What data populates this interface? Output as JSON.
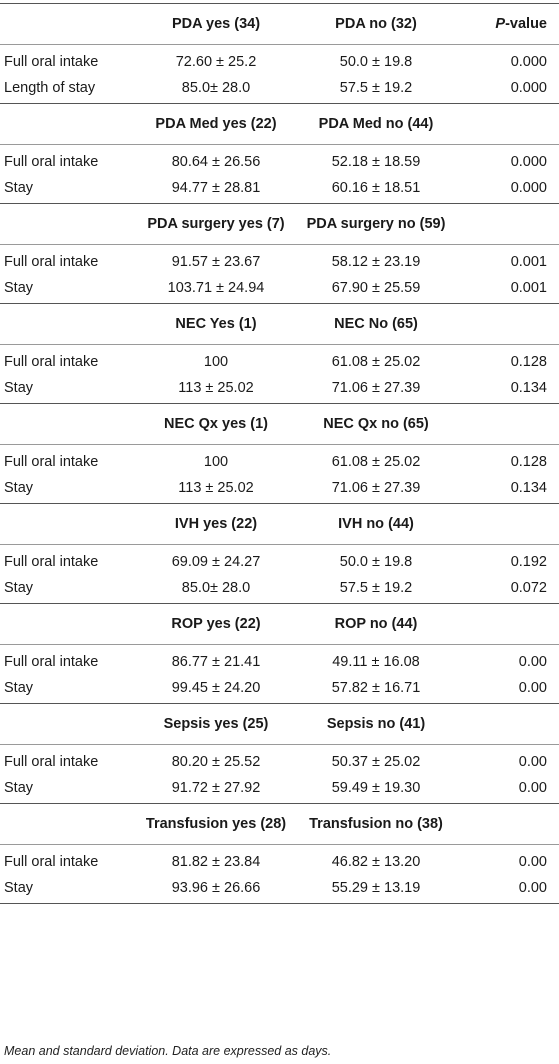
{
  "header": {
    "p_value_prefix": "P",
    "p_value_suffix": "-value"
  },
  "sections": [
    {
      "yes_label": "PDA yes (34)",
      "no_label": "PDA no (32)",
      "rows": [
        {
          "label": "Full oral intake",
          "yes": "72.60 ± 25.2",
          "no": "50.0 ± 19.8",
          "p": "0.000"
        },
        {
          "label": "Length of stay",
          "yes": "85.0± 28.0",
          "no": "57.5 ± 19.2",
          "p": "0.000"
        }
      ]
    },
    {
      "yes_label": "PDA Med yes (22)",
      "no_label": "PDA Med no (44)",
      "rows": [
        {
          "label": "Full oral intake",
          "yes": "80.64 ± 26.56",
          "no": "52.18 ± 18.59",
          "p": "0.000"
        },
        {
          "label": "Stay",
          "yes": "94.77 ± 28.81",
          "no": "60.16 ± 18.51",
          "p": "0.000"
        }
      ]
    },
    {
      "yes_label": "PDA surgery yes (7)",
      "no_label": "PDA surgery no (59)",
      "rows": [
        {
          "label": "Full oral intake",
          "yes": "91.57 ± 23.67",
          "no": "58.12 ± 23.19",
          "p": "0.001"
        },
        {
          "label": "Stay",
          "yes": "103.71 ± 24.94",
          "no": "67.90 ± 25.59",
          "p": "0.001"
        }
      ]
    },
    {
      "yes_label": "NEC Yes (1)",
      "no_label": "NEC No (65)",
      "rows": [
        {
          "label": "Full oral intake",
          "yes": "100",
          "no": "61.08 ± 25.02",
          "p": "0.128"
        },
        {
          "label": "Stay",
          "yes": "113 ± 25.02",
          "no": "71.06 ± 27.39",
          "p": "0.134"
        }
      ]
    },
    {
      "yes_label": "NEC Qx yes (1)",
      "no_label": "NEC Qx no (65)",
      "rows": [
        {
          "label": "Full oral intake",
          "yes": "100",
          "no": "61.08 ± 25.02",
          "p": "0.128"
        },
        {
          "label": "Stay",
          "yes": "113 ± 25.02",
          "no": "71.06 ± 27.39",
          "p": "0.134"
        }
      ]
    },
    {
      "yes_label": "IVH yes (22)",
      "no_label": "IVH no (44)",
      "rows": [
        {
          "label": "Full oral intake",
          "yes": "69.09 ± 24.27",
          "no": "50.0 ± 19.8",
          "p": "0.192"
        },
        {
          "label": "Stay",
          "yes": "85.0± 28.0",
          "no": "57.5 ± 19.2",
          "p": "0.072"
        }
      ]
    },
    {
      "yes_label": "ROP yes (22)",
      "no_label": "ROP no (44)",
      "rows": [
        {
          "label": "Full oral intake",
          "yes": "86.77 ± 21.41",
          "no": "49.11 ± 16.08",
          "p": "0.00"
        },
        {
          "label": "Stay",
          "yes": "99.45 ± 24.20",
          "no": "57.82 ± 16.71",
          "p": "0.00"
        }
      ]
    },
    {
      "yes_label": "Sepsis yes (25)",
      "no_label": "Sepsis no (41)",
      "rows": [
        {
          "label": "Full oral intake",
          "yes": "80.20 ± 25.52",
          "no": "50.37 ± 25.02",
          "p": "0.00"
        },
        {
          "label": "Stay",
          "yes": "91.72 ± 27.92",
          "no": "59.49 ± 19.30",
          "p": "0.00"
        }
      ]
    },
    {
      "yes_label": "Transfusion yes (28)",
      "no_label": "Transfusion no (38)",
      "rows": [
        {
          "label": "Full oral intake",
          "yes": "81.82 ± 23.84",
          "no": "46.82 ± 13.20",
          "p": "0.00"
        },
        {
          "label": "Stay",
          "yes": "93.96 ± 26.66",
          "no": "55.29 ± 13.19",
          "p": "0.00"
        }
      ]
    }
  ],
  "footnote": "Mean and standard deviation. Data are expressed as days."
}
